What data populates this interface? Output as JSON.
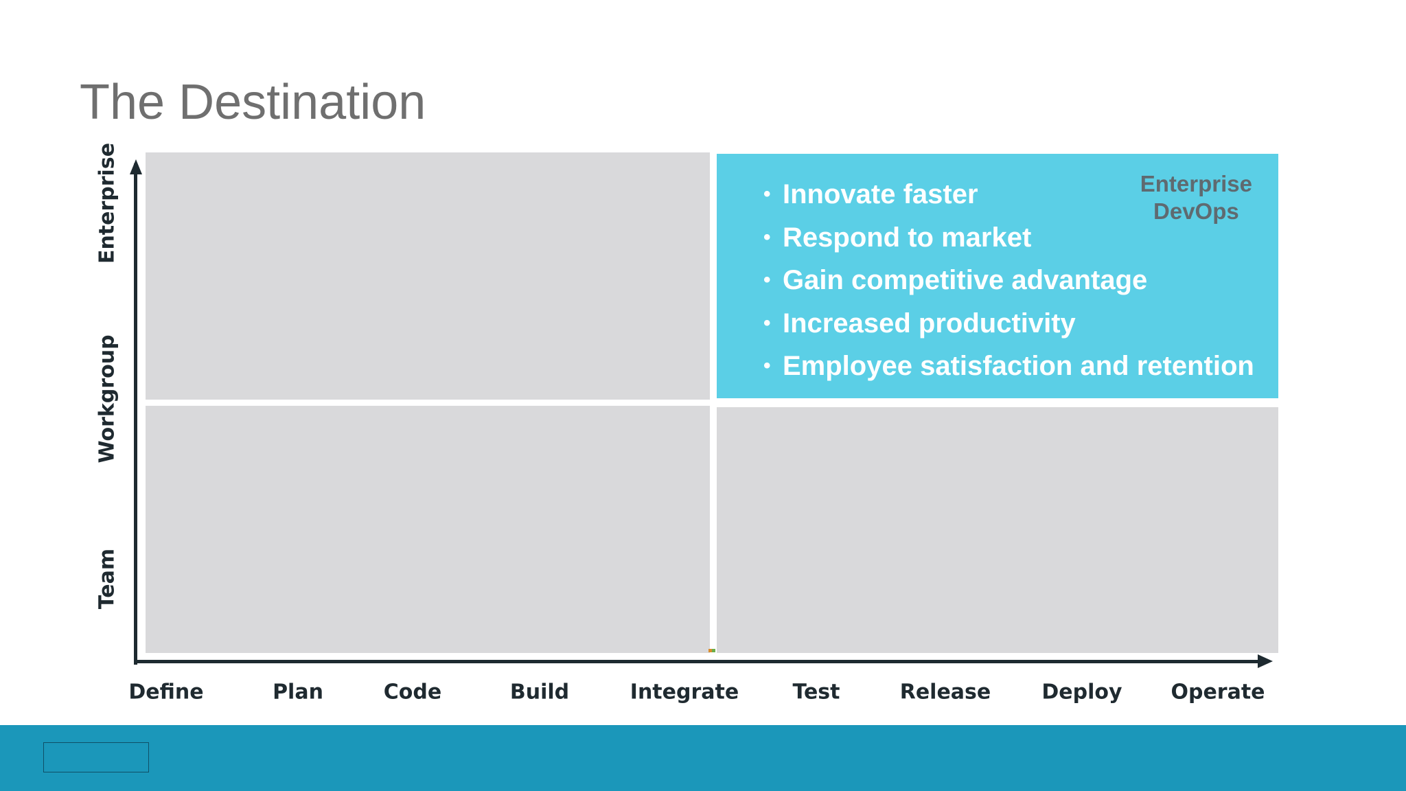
{
  "slide": {
    "title": "The Destination"
  },
  "highlight": {
    "badge_line1": "Enterprise",
    "badge_line2": "DevOps",
    "bullets": [
      "Innovate faster",
      "Respond to market",
      "Gain competitive advantage",
      "Increased productivity",
      "Employee satisfaction and retention"
    ]
  },
  "axes": {
    "y_labels": [
      "Enterprise",
      "Workgroup",
      "Team"
    ],
    "x_labels": [
      "Define",
      "Plan",
      "Code",
      "Build",
      "Integrate",
      "Test",
      "Release",
      "Deploy",
      "Operate"
    ]
  },
  "colors": {
    "highlight": "#5bcfe6",
    "quadrant": "#d9d9db",
    "footer": "#1b97ba",
    "axis": "#1e2a30"
  }
}
